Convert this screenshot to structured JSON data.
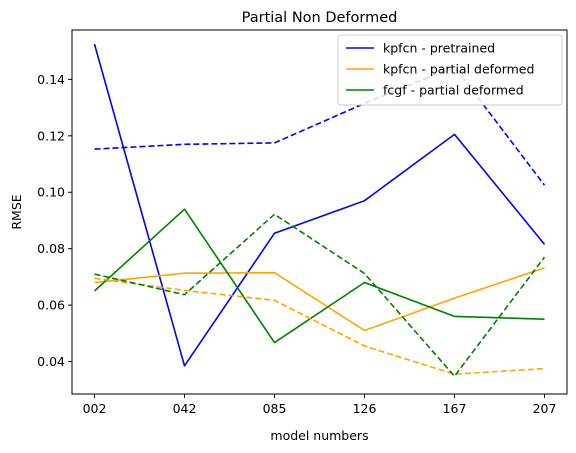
{
  "chart_data": {
    "type": "line",
    "title": "Partial Non Deformed",
    "xlabel": "model numbers",
    "ylabel": "RMSE",
    "categories": [
      "002",
      "042",
      "085",
      "126",
      "167",
      "207"
    ],
    "yticks": [
      "0.04",
      "0.06",
      "0.08",
      "0.10",
      "0.12",
      "0.14"
    ],
    "ytick_values": [
      0.04,
      0.06,
      0.08,
      0.1,
      0.12,
      0.14
    ],
    "ylim": [
      0.0285,
      0.1575
    ],
    "grid": false,
    "legend_position": "top-right",
    "series": [
      {
        "name": "kpfcn - pretrained",
        "color": "#0000ff",
        "style": "solid",
        "values": [
          0.1525,
          0.0385,
          0.0855,
          0.097,
          0.1205,
          0.0815
        ]
      },
      {
        "name": "kpfcn - partial deformed",
        "color": "#ffa500",
        "style": "solid",
        "values": [
          0.068,
          0.0713,
          0.0715,
          0.051,
          0.0625,
          0.0732
        ]
      },
      {
        "name": "fcgf - partial deformed",
        "color": "#008000",
        "style": "solid",
        "values": [
          0.065,
          0.094,
          0.0467,
          0.068,
          0.056,
          0.055
        ]
      },
      {
        "name": "",
        "color": "#0000ff",
        "style": "dashed",
        "values": [
          0.1153,
          0.117,
          0.1175,
          0.1315,
          0.1445,
          0.1025
        ]
      },
      {
        "name": "",
        "color": "#ffa500",
        "style": "dashed",
        "values": [
          0.0695,
          0.0652,
          0.0617,
          0.0455,
          0.0355,
          0.0375
        ]
      },
      {
        "name": "",
        "color": "#008000",
        "style": "dashed",
        "values": [
          0.071,
          0.0637,
          0.0922,
          0.0712,
          0.0348,
          0.077
        ]
      }
    ]
  }
}
